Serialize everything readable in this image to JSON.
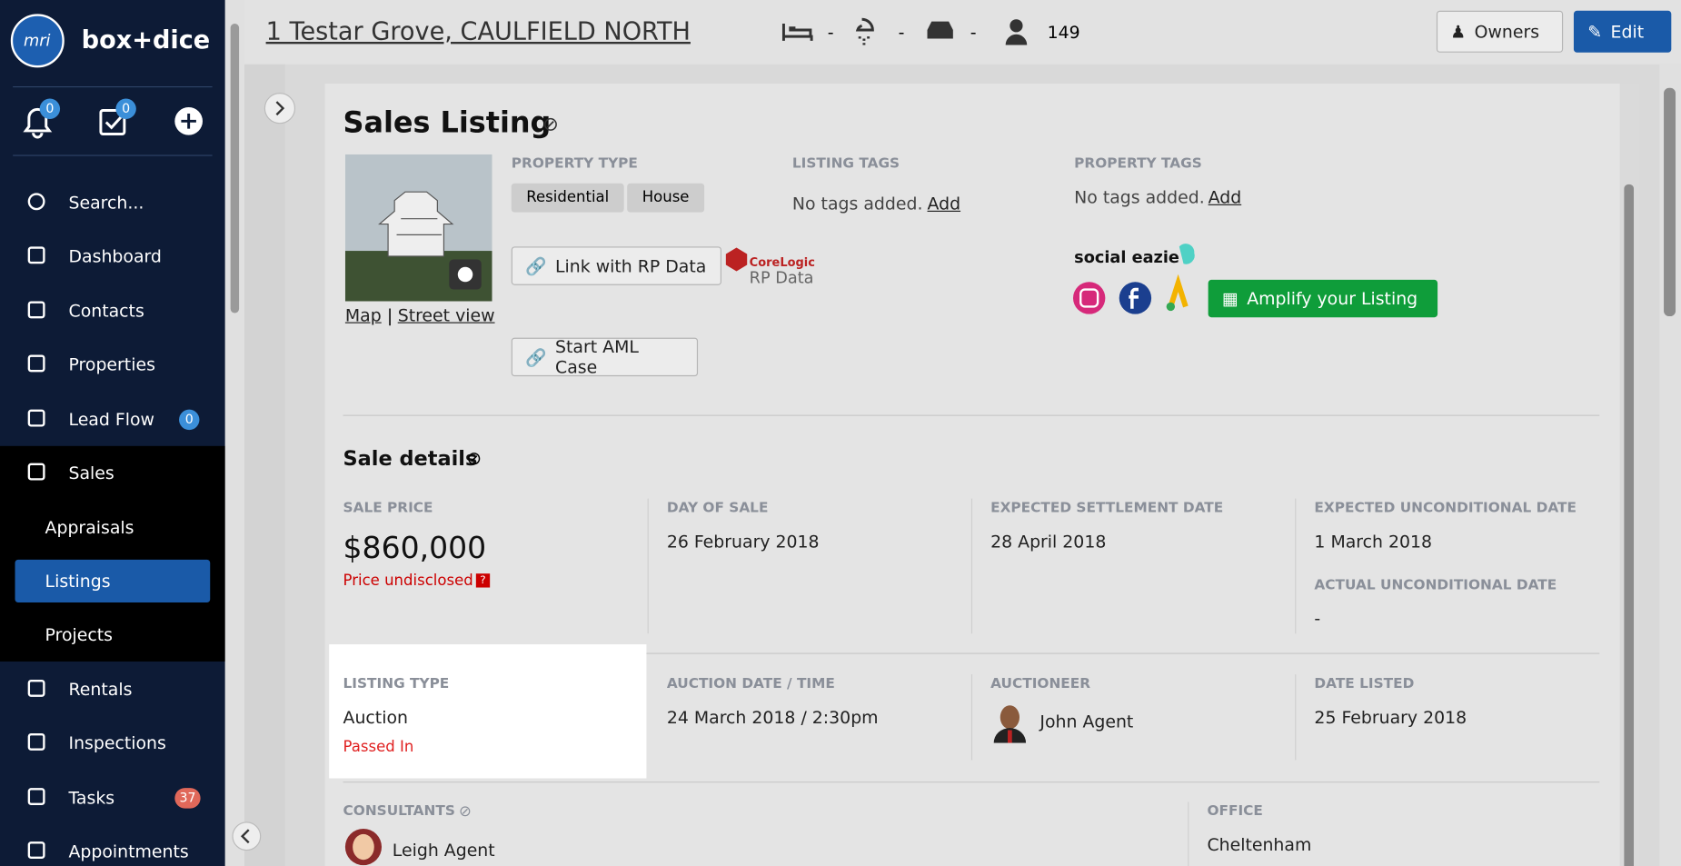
{
  "sidebar": {
    "brand": "box+dice",
    "logo": "mri",
    "notification_count": 0,
    "task_count": 0,
    "nav": [
      {
        "label": "Search..."
      },
      {
        "label": "Dashboard"
      },
      {
        "label": "Contacts"
      },
      {
        "label": "Properties"
      },
      {
        "label": "Lead Flow",
        "badge": 0
      },
      {
        "label": "Sales"
      },
      {
        "label": "Appraisals"
      },
      {
        "label": "Listings"
      },
      {
        "label": "Projects"
      },
      {
        "label": "Rentals"
      },
      {
        "label": "Inspections"
      },
      {
        "label": "Tasks",
        "badge": 37
      },
      {
        "label": "Appointments"
      }
    ]
  },
  "header": {
    "address": "1 Testar Grove, CAULFIELD NORTH",
    "beds": "-",
    "baths": "-",
    "cars": "-",
    "contacts": 149,
    "owners": "Owners",
    "edit": "Edit"
  },
  "listing": {
    "title": "Sales Listing",
    "map": "Map",
    "separator": "|",
    "street_view": "Street view",
    "property_type_label": "PROPERTY TYPE",
    "property_types": [
      "Residential",
      "House"
    ],
    "link_rp": "Link with RP Data",
    "corelogic": "CoreLogic",
    "rp_data": "RP Data",
    "start_aml": "Start AML Case",
    "listing_tags_label": "LISTING TAGS",
    "listing_tags_empty": "No tags added.",
    "listing_tags_add": "Add",
    "property_tags_label": "PROPERTY TAGS",
    "property_tags_empty": "No tags added.",
    "property_tags_add": "Add",
    "social_eazie": "social eazie",
    "amplify": "Amplify your Listing"
  },
  "sale_details": {
    "title": "Sale details",
    "sale_price": {
      "label": "SALE PRICE",
      "value": "$860,000",
      "note": "Price undisclosed"
    },
    "day_of_sale": {
      "label": "DAY OF SALE",
      "value": "26 February 2018"
    },
    "expected_settlement": {
      "label": "EXPECTED SETTLEMENT DATE",
      "value": "28 April 2018"
    },
    "expected_unconditional": {
      "label": "EXPECTED UNCONDITIONAL DATE",
      "value": "1 March 2018"
    },
    "actual_unconditional": {
      "label": "ACTUAL UNCONDITIONAL DATE",
      "value": "-"
    },
    "listing_type": {
      "label": "LISTING TYPE",
      "value": "Auction",
      "note": "Passed In"
    },
    "auction_date": {
      "label": "AUCTION DATE / TIME",
      "value": "24 March 2018 / 2:30pm"
    },
    "auctioneer": {
      "label": "AUCTIONEER",
      "value": "John Agent"
    },
    "date_listed": {
      "label": "DATE LISTED",
      "value": "25 February 2018"
    },
    "consultants": {
      "label": "CONSULTANTS",
      "value": "Leigh Agent"
    },
    "office": {
      "label": "OFFICE",
      "value": "Cheltenham"
    }
  }
}
